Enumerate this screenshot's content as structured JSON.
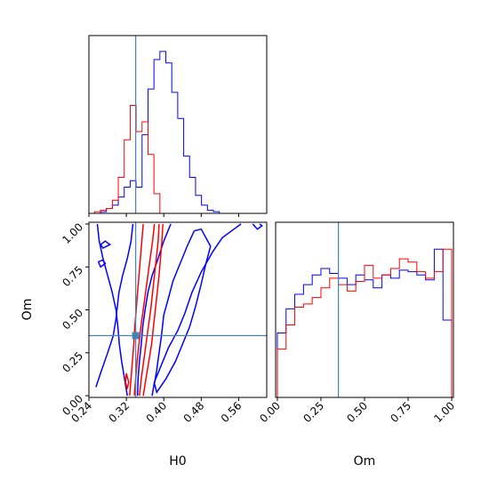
{
  "chart_data": {
    "type": "corner",
    "parameters": [
      "H0",
      "Om"
    ],
    "truth": {
      "H0": 0.34,
      "Om": 0.35
    },
    "truth_color": "#4682b4",
    "series": [
      {
        "color": "#0000ff"
      },
      {
        "color": "#ff0000"
      }
    ],
    "axes": {
      "H0": {
        "label": "H0",
        "lim": [
          0.24,
          0.62
        ],
        "ticks": [
          0.24,
          0.32,
          0.4,
          0.48,
          0.56
        ],
        "tick_labels": [
          "0.24",
          "0.32",
          "0.40",
          "0.48",
          "0.56"
        ]
      },
      "Om": {
        "label": "Om",
        "lim": [
          -0.01,
          1.01
        ],
        "ticks": [
          0.0,
          0.25,
          0.5,
          0.75,
          1.0
        ],
        "tick_labels": [
          "0.00",
          "0.25",
          "0.50",
          "0.75",
          "1.00"
        ]
      }
    },
    "hist_H0": {
      "bin_width": 0.0127,
      "bins": [
        {
          "x0": 0.252,
          "blue": 0.0,
          "red": 0.01
        },
        {
          "x0": 0.2647,
          "blue": 0.01,
          "red": 0.02
        },
        {
          "x0": 0.2774,
          "blue": 0.03,
          "red": 0.03
        },
        {
          "x0": 0.2901,
          "blue": 0.05,
          "red": 0.08
        },
        {
          "x0": 0.3028,
          "blue": 0.1,
          "red": 0.22
        },
        {
          "x0": 0.3155,
          "blue": 0.16,
          "red": 0.45
        },
        {
          "x0": 0.3282,
          "blue": 0.2,
          "red": 0.66
        },
        {
          "x0": 0.3409,
          "blue": 0.16,
          "red": 0.5
        },
        {
          "x0": 0.3536,
          "blue": 0.48,
          "red": 0.56
        },
        {
          "x0": 0.3663,
          "blue": 0.76,
          "red": 0.36
        },
        {
          "x0": 0.379,
          "blue": 0.94,
          "red": 0.12
        },
        {
          "x0": 0.3917,
          "blue": 0.99,
          "red": 0.0
        },
        {
          "x0": 0.4044,
          "blue": 0.92,
          "red": 0.0
        },
        {
          "x0": 0.4171,
          "blue": 0.74,
          "red": 0.0
        },
        {
          "x0": 0.4298,
          "blue": 0.58,
          "red": 0.0
        },
        {
          "x0": 0.4425,
          "blue": 0.35,
          "red": 0.0
        },
        {
          "x0": 0.4552,
          "blue": 0.22,
          "red": 0.0
        },
        {
          "x0": 0.4679,
          "blue": 0.11,
          "red": 0.0
        },
        {
          "x0": 0.4806,
          "blue": 0.05,
          "red": 0.0
        },
        {
          "x0": 0.4933,
          "blue": 0.02,
          "red": 0.0
        },
        {
          "x0": 0.506,
          "blue": 0.01,
          "red": 0.0
        }
      ]
    },
    "hist_Om": {
      "bin_width": 0.05,
      "bins": [
        {
          "x0": 0.0,
          "blue": 0.4,
          "red": 0.3
        },
        {
          "x0": 0.05,
          "blue": 0.55,
          "red": 0.45
        },
        {
          "x0": 0.1,
          "blue": 0.64,
          "red": 0.56
        },
        {
          "x0": 0.15,
          "blue": 0.7,
          "red": 0.58
        },
        {
          "x0": 0.2,
          "blue": 0.76,
          "red": 0.62
        },
        {
          "x0": 0.25,
          "blue": 0.8,
          "red": 0.68
        },
        {
          "x0": 0.3,
          "blue": 0.77,
          "red": 0.74
        },
        {
          "x0": 0.35,
          "blue": 0.74,
          "red": 0.7
        },
        {
          "x0": 0.4,
          "blue": 0.7,
          "red": 0.66
        },
        {
          "x0": 0.45,
          "blue": 0.76,
          "red": 0.72
        },
        {
          "x0": 0.5,
          "blue": 0.73,
          "red": 0.82
        },
        {
          "x0": 0.55,
          "blue": 0.68,
          "red": 0.74
        },
        {
          "x0": 0.6,
          "blue": 0.76,
          "red": 0.76
        },
        {
          "x0": 0.65,
          "blue": 0.74,
          "red": 0.8
        },
        {
          "x0": 0.7,
          "blue": 0.79,
          "red": 0.86
        },
        {
          "x0": 0.75,
          "blue": 0.78,
          "red": 0.84
        },
        {
          "x0": 0.8,
          "blue": 0.76,
          "red": 0.78
        },
        {
          "x0": 0.85,
          "blue": 0.73,
          "red": 0.74
        },
        {
          "x0": 0.9,
          "blue": 0.92,
          "red": 0.78
        },
        {
          "x0": 0.95,
          "blue": 0.48,
          "red": 0.92
        }
      ]
    },
    "contours_2d": [
      {
        "color": "#0000ff",
        "points": [
          [
            0.258,
            1.0
          ],
          [
            0.262,
            0.9
          ],
          [
            0.27,
            0.8
          ],
          [
            0.28,
            0.7
          ],
          [
            0.29,
            0.6
          ],
          [
            0.298,
            0.5
          ],
          [
            0.302,
            0.4
          ],
          [
            0.305,
            0.3
          ],
          [
            0.31,
            0.2
          ],
          [
            0.316,
            0.1
          ],
          [
            0.322,
            0.0
          ]
        ]
      },
      {
        "color": "#0000ff",
        "points": [
          [
            0.334,
            1.0
          ],
          [
            0.33,
            0.9
          ],
          [
            0.322,
            0.8
          ],
          [
            0.312,
            0.7
          ],
          [
            0.304,
            0.6
          ],
          [
            0.298,
            0.45
          ],
          [
            0.292,
            0.35
          ],
          [
            0.28,
            0.25
          ],
          [
            0.266,
            0.14
          ],
          [
            0.255,
            0.05
          ]
        ]
      },
      {
        "color": "#0000ff",
        "points": [
          [
            0.415,
            1.0
          ],
          [
            0.4,
            0.9
          ],
          [
            0.388,
            0.8
          ],
          [
            0.375,
            0.7
          ],
          [
            0.366,
            0.6
          ],
          [
            0.36,
            0.5
          ],
          [
            0.355,
            0.4
          ],
          [
            0.352,
            0.3
          ],
          [
            0.348,
            0.2
          ],
          [
            0.345,
            0.1
          ],
          [
            0.344,
            0.0
          ]
        ]
      },
      {
        "color": "#0000ff",
        "points": [
          [
            0.465,
            0.96
          ],
          [
            0.45,
            0.87
          ],
          [
            0.435,
            0.77
          ],
          [
            0.42,
            0.67
          ],
          [
            0.41,
            0.57
          ],
          [
            0.4,
            0.47
          ],
          [
            0.395,
            0.35
          ],
          [
            0.39,
            0.25
          ],
          [
            0.385,
            0.15
          ],
          [
            0.38,
            0.07
          ],
          [
            0.385,
            0.02
          ],
          [
            0.405,
            0.1
          ],
          [
            0.425,
            0.2
          ],
          [
            0.44,
            0.3
          ],
          [
            0.455,
            0.4
          ],
          [
            0.468,
            0.52
          ],
          [
            0.48,
            0.65
          ],
          [
            0.49,
            0.77
          ],
          [
            0.5,
            0.87
          ],
          [
            0.48,
            0.97
          ],
          [
            0.465,
            0.96
          ]
        ]
      },
      {
        "color": "#0000ff",
        "points": [
          [
            0.375,
            0.0
          ],
          [
            0.38,
            0.08
          ],
          [
            0.395,
            0.18
          ],
          [
            0.41,
            0.28
          ],
          [
            0.43,
            0.38
          ],
          [
            0.445,
            0.48
          ],
          [
            0.46,
            0.6
          ],
          [
            0.48,
            0.72
          ],
          [
            0.505,
            0.84
          ],
          [
            0.525,
            0.92
          ],
          [
            0.55,
            0.97
          ],
          [
            0.565,
            1.0
          ]
        ]
      },
      {
        "color": "#0000ff",
        "points": [
          [
            0.26,
            0.78
          ],
          [
            0.27,
            0.79
          ],
          [
            0.275,
            0.77
          ],
          [
            0.265,
            0.75
          ],
          [
            0.26,
            0.78
          ]
        ]
      },
      {
        "color": "#0000ff",
        "points": [
          [
            0.265,
            0.88
          ],
          [
            0.275,
            0.9
          ],
          [
            0.285,
            0.88
          ],
          [
            0.27,
            0.86
          ],
          [
            0.265,
            0.88
          ]
        ]
      },
      {
        "color": "#0000ff",
        "points": [
          [
            0.59,
            1.0
          ],
          [
            0.6,
            0.97
          ],
          [
            0.61,
            0.99
          ],
          [
            0.605,
            1.0
          ]
        ]
      },
      {
        "color": "#ff0000",
        "points": [
          [
            0.327,
            0.0
          ],
          [
            0.33,
            0.1
          ],
          [
            0.333,
            0.2
          ],
          [
            0.336,
            0.3
          ],
          [
            0.338,
            0.4
          ],
          [
            0.341,
            0.5
          ],
          [
            0.344,
            0.6
          ],
          [
            0.347,
            0.7
          ],
          [
            0.35,
            0.8
          ],
          [
            0.353,
            0.9
          ],
          [
            0.356,
            1.0
          ]
        ]
      },
      {
        "color": "#ff0000",
        "points": [
          [
            0.337,
            0.0
          ],
          [
            0.34,
            0.1
          ],
          [
            0.343,
            0.2
          ],
          [
            0.347,
            0.3
          ],
          [
            0.351,
            0.4
          ],
          [
            0.356,
            0.5
          ],
          [
            0.361,
            0.6
          ],
          [
            0.366,
            0.7
          ],
          [
            0.371,
            0.8
          ],
          [
            0.376,
            0.9
          ],
          [
            0.38,
            1.0
          ]
        ]
      },
      {
        "color": "#ff0000",
        "points": [
          [
            0.348,
            0.0
          ],
          [
            0.352,
            0.1
          ],
          [
            0.357,
            0.2
          ],
          [
            0.362,
            0.3
          ],
          [
            0.367,
            0.4
          ],
          [
            0.372,
            0.5
          ],
          [
            0.376,
            0.6
          ],
          [
            0.38,
            0.7
          ],
          [
            0.384,
            0.8
          ],
          [
            0.388,
            0.9
          ],
          [
            0.39,
            1.0
          ]
        ]
      },
      {
        "color": "#ff0000",
        "points": [
          [
            0.356,
            0.0
          ],
          [
            0.362,
            0.1
          ],
          [
            0.368,
            0.2
          ],
          [
            0.374,
            0.3
          ],
          [
            0.378,
            0.4
          ],
          [
            0.382,
            0.5
          ],
          [
            0.386,
            0.6
          ],
          [
            0.39,
            0.7
          ],
          [
            0.393,
            0.8
          ],
          [
            0.396,
            0.9
          ],
          [
            0.398,
            1.0
          ]
        ]
      },
      {
        "color": "#ff0000",
        "points": [
          [
            0.32,
            0.13
          ],
          [
            0.325,
            0.08
          ],
          [
            0.322,
            0.04
          ],
          [
            0.318,
            0.08
          ],
          [
            0.32,
            0.13
          ]
        ]
      }
    ]
  }
}
